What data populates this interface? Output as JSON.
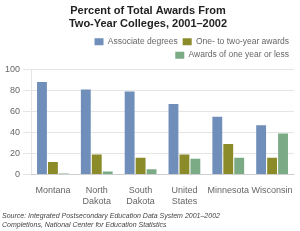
{
  "chart_data": {
    "type": "bar",
    "title": "Percent of Total Awards From\nTwo-Year Colleges, 2001–2002",
    "categories": [
      "Montana",
      "North\nDakota",
      "South\nDakota",
      "United\nStates",
      "Minnesota",
      "Wisconsin"
    ],
    "series": [
      {
        "name": "Associate degrees",
        "color": "#6f8fba",
        "values": [
          88,
          81,
          79,
          67,
          55,
          47
        ]
      },
      {
        "name": "One- to two-year awards",
        "color": "#8b8b2a",
        "values": [
          12,
          19,
          16,
          19,
          29,
          16
        ]
      },
      {
        "name": "Awards of one year or less",
        "color": "#7aab85",
        "values": [
          1,
          3,
          5,
          15,
          16,
          39
        ]
      }
    ],
    "ylim": [
      0,
      100
    ],
    "yticks": [
      0,
      20,
      40,
      60,
      80,
      100
    ],
    "grid": true,
    "legend": "upper right",
    "annotations": [
      "Source: Integrated Postsecondary Education Data System 2001–2002\nCompletions, National Center for Education Statistics"
    ]
  }
}
